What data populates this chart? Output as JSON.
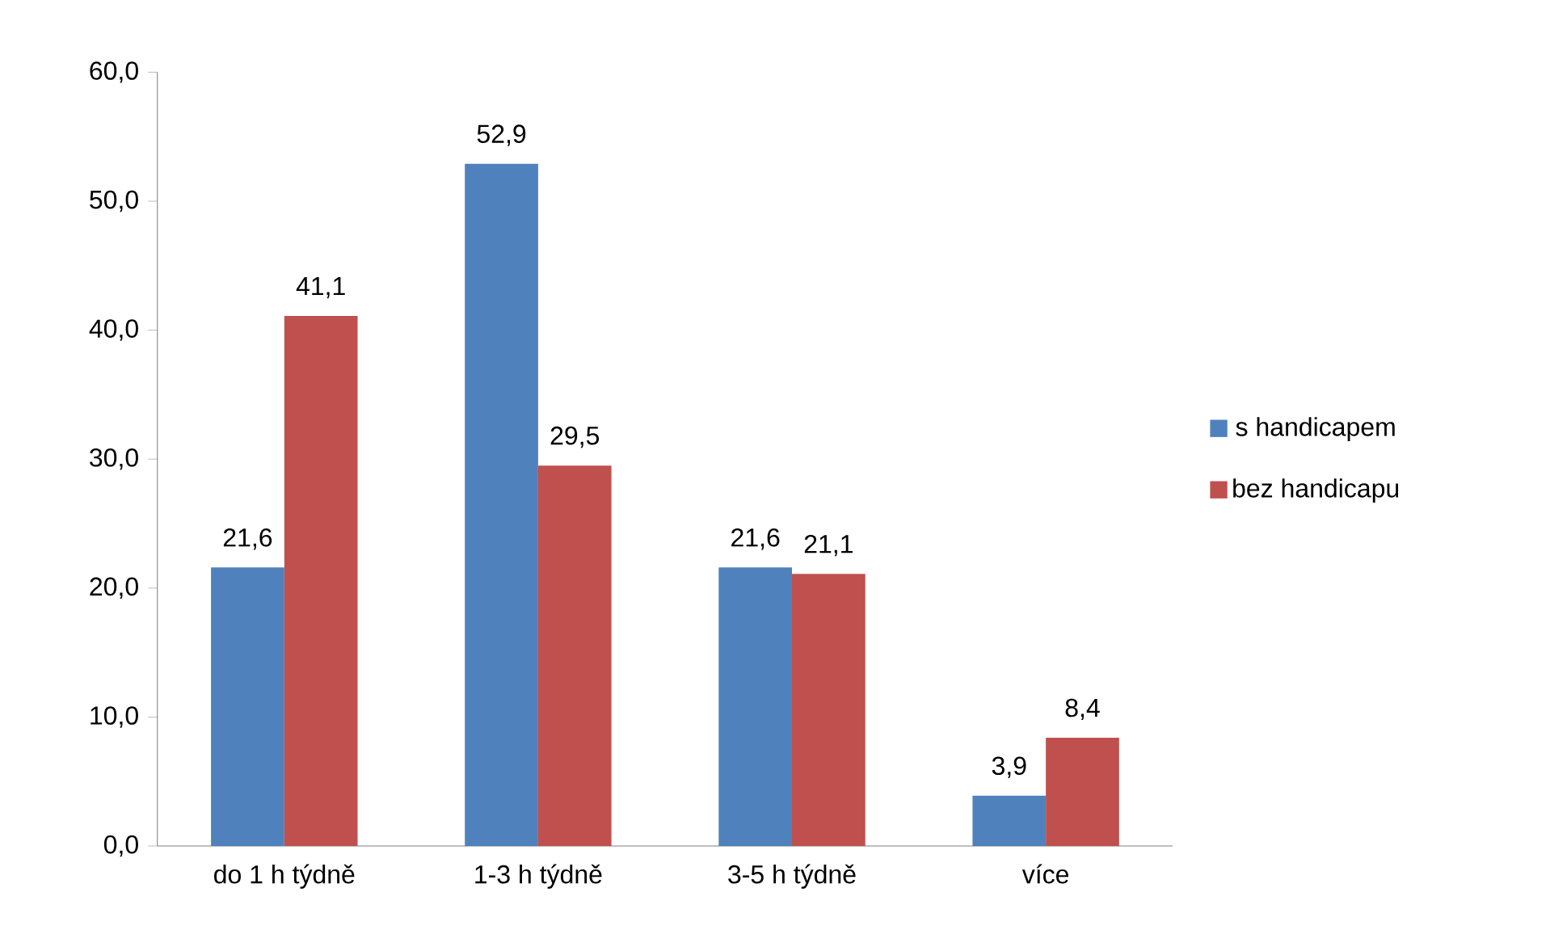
{
  "chart_data": {
    "type": "bar",
    "categories": [
      "do 1 h týdně",
      "1-3 h týdně",
      "3-5 h týdně",
      "více"
    ],
    "series": [
      {
        "name": "s handicapem",
        "color": "#4f81bd",
        "values": [
          21.6,
          52.9,
          21.6,
          3.9
        ],
        "value_labels": [
          "21,6",
          "52,9",
          "21,6",
          "3,9"
        ]
      },
      {
        "name": "bez handicapu",
        "color": "#c0504d",
        "values": [
          41.1,
          29.5,
          21.1,
          8.4
        ],
        "value_labels": [
          "41,1",
          "29,5",
          "21,1",
          "8,4"
        ]
      }
    ],
    "ylim": [
      0,
      60
    ],
    "yticks": [
      {
        "value": 0,
        "label": "0,0"
      },
      {
        "value": 10,
        "label": "10,0"
      },
      {
        "value": 20,
        "label": "20,0"
      },
      {
        "value": 30,
        "label": "30,0"
      },
      {
        "value": 40,
        "label": "40,0"
      },
      {
        "value": 50,
        "label": "50,0"
      },
      {
        "value": 60,
        "label": "60,0"
      }
    ],
    "grid": false,
    "legend": "right"
  }
}
